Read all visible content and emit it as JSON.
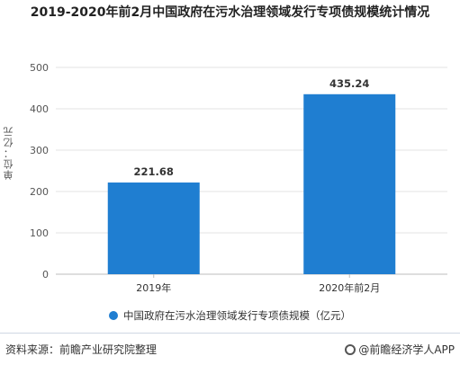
{
  "title": "2019-2020年前2月中国政府在污水治理领域发行专项债规模统计情况",
  "ylabel": "单位：亿元",
  "legend": "中国政府在污水治理领域发行专项债规模（亿元）",
  "source": "资料来源：前瞻产业研究院整理",
  "brand": "@前瞻经济学人APP",
  "chart_data": {
    "type": "bar",
    "categories": [
      "2019年",
      "2020年前2月"
    ],
    "values": [
      221.68,
      435.24
    ],
    "value_labels": [
      "221.68",
      "435.24"
    ],
    "title": "2019-2020年前2月中国政府在污水治理领域发行专项债规模统计情况",
    "xlabel": "",
    "ylabel": "单位：亿元",
    "ylim": [
      0,
      500
    ],
    "yticks": [
      0,
      100,
      200,
      300,
      400,
      500
    ],
    "grid": true,
    "color": "#1f7ed1",
    "legend_position": "bottom"
  }
}
